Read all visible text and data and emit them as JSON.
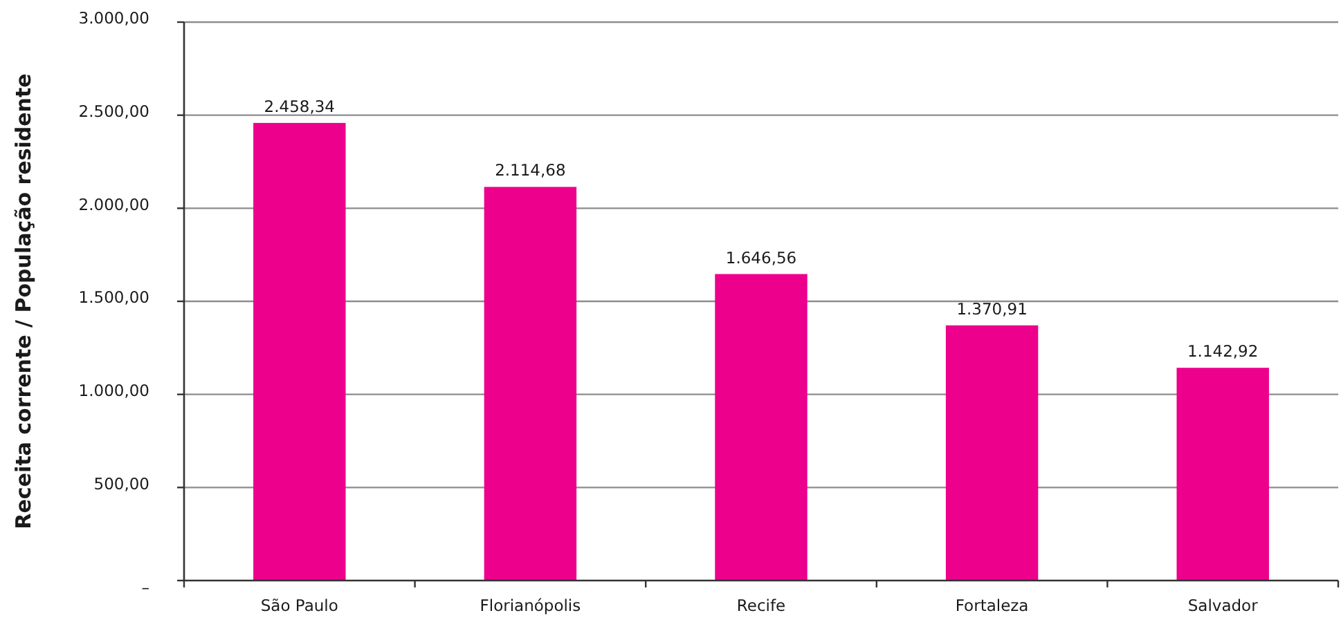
{
  "chart_data": {
    "type": "bar",
    "ylabel": "Receita corrente / População residente",
    "categories": [
      "São Paulo",
      "Florianópolis",
      "Recife",
      "Fortaleza",
      "Salvador"
    ],
    "values": [
      2458.34,
      2114.68,
      1646.56,
      1370.91,
      1142.92
    ],
    "color": "#ec008c",
    "value_labels": [
      "2.458,34",
      "2.114,68",
      "1.646,56",
      "1.370,91",
      "1.142,92"
    ],
    "ylim": [
      0,
      3000
    ],
    "yticks": [
      {
        "value": 0,
        "label": "–"
      },
      {
        "value": 500,
        "label": "500,00"
      },
      {
        "value": 1000,
        "label": "1.000,00"
      },
      {
        "value": 1500,
        "label": "1.500,00"
      },
      {
        "value": 2000,
        "label": "2.000,00"
      },
      {
        "value": 2500,
        "label": "2.500,00"
      },
      {
        "value": 3000,
        "label": "3.000,00"
      }
    ],
    "grid": "y"
  }
}
